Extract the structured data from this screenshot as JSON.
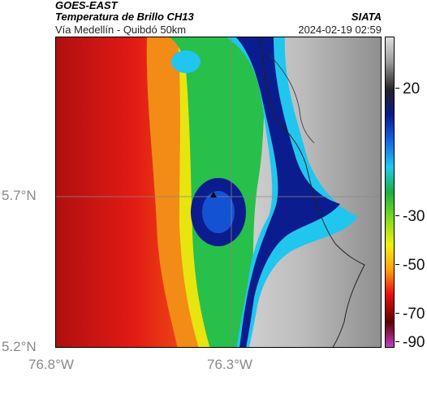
{
  "header": {
    "satellite": "GOES-EAST",
    "product": "Temperatura de Brillo CH13",
    "route": "Vía Medellín - Quibdó 50km",
    "org": "SIATA",
    "timestamp": "2024-02-19 02:59"
  },
  "axes": {
    "lat_labels": [
      "5.7°N",
      "5.2°N"
    ],
    "lon_labels": [
      "76.8°W",
      "76.3°W"
    ]
  },
  "colorbar": {
    "tick_labels": [
      "20",
      "-30",
      "-50",
      "-70",
      "-90"
    ],
    "colors": [
      "#e0e0e0",
      "#9a9a9a",
      "#222222",
      "#0a1a8a",
      "#1560e0",
      "#22c8f0",
      "#18b040",
      "#7ad820",
      "#f0f010",
      "#ffa010",
      "#e81010",
      "#600000",
      "#c040c0"
    ]
  },
  "map": {
    "marker": "triangle-marker",
    "gridlines": true,
    "colors": {
      "land": "#b9b9b9",
      "warm": "#d61a14",
      "orange": "#f08a14",
      "yellow": "#e6e80e",
      "green": "#2cc04a",
      "deep_blue": "#0b1c8e",
      "cyan": "#20c6ee"
    }
  }
}
